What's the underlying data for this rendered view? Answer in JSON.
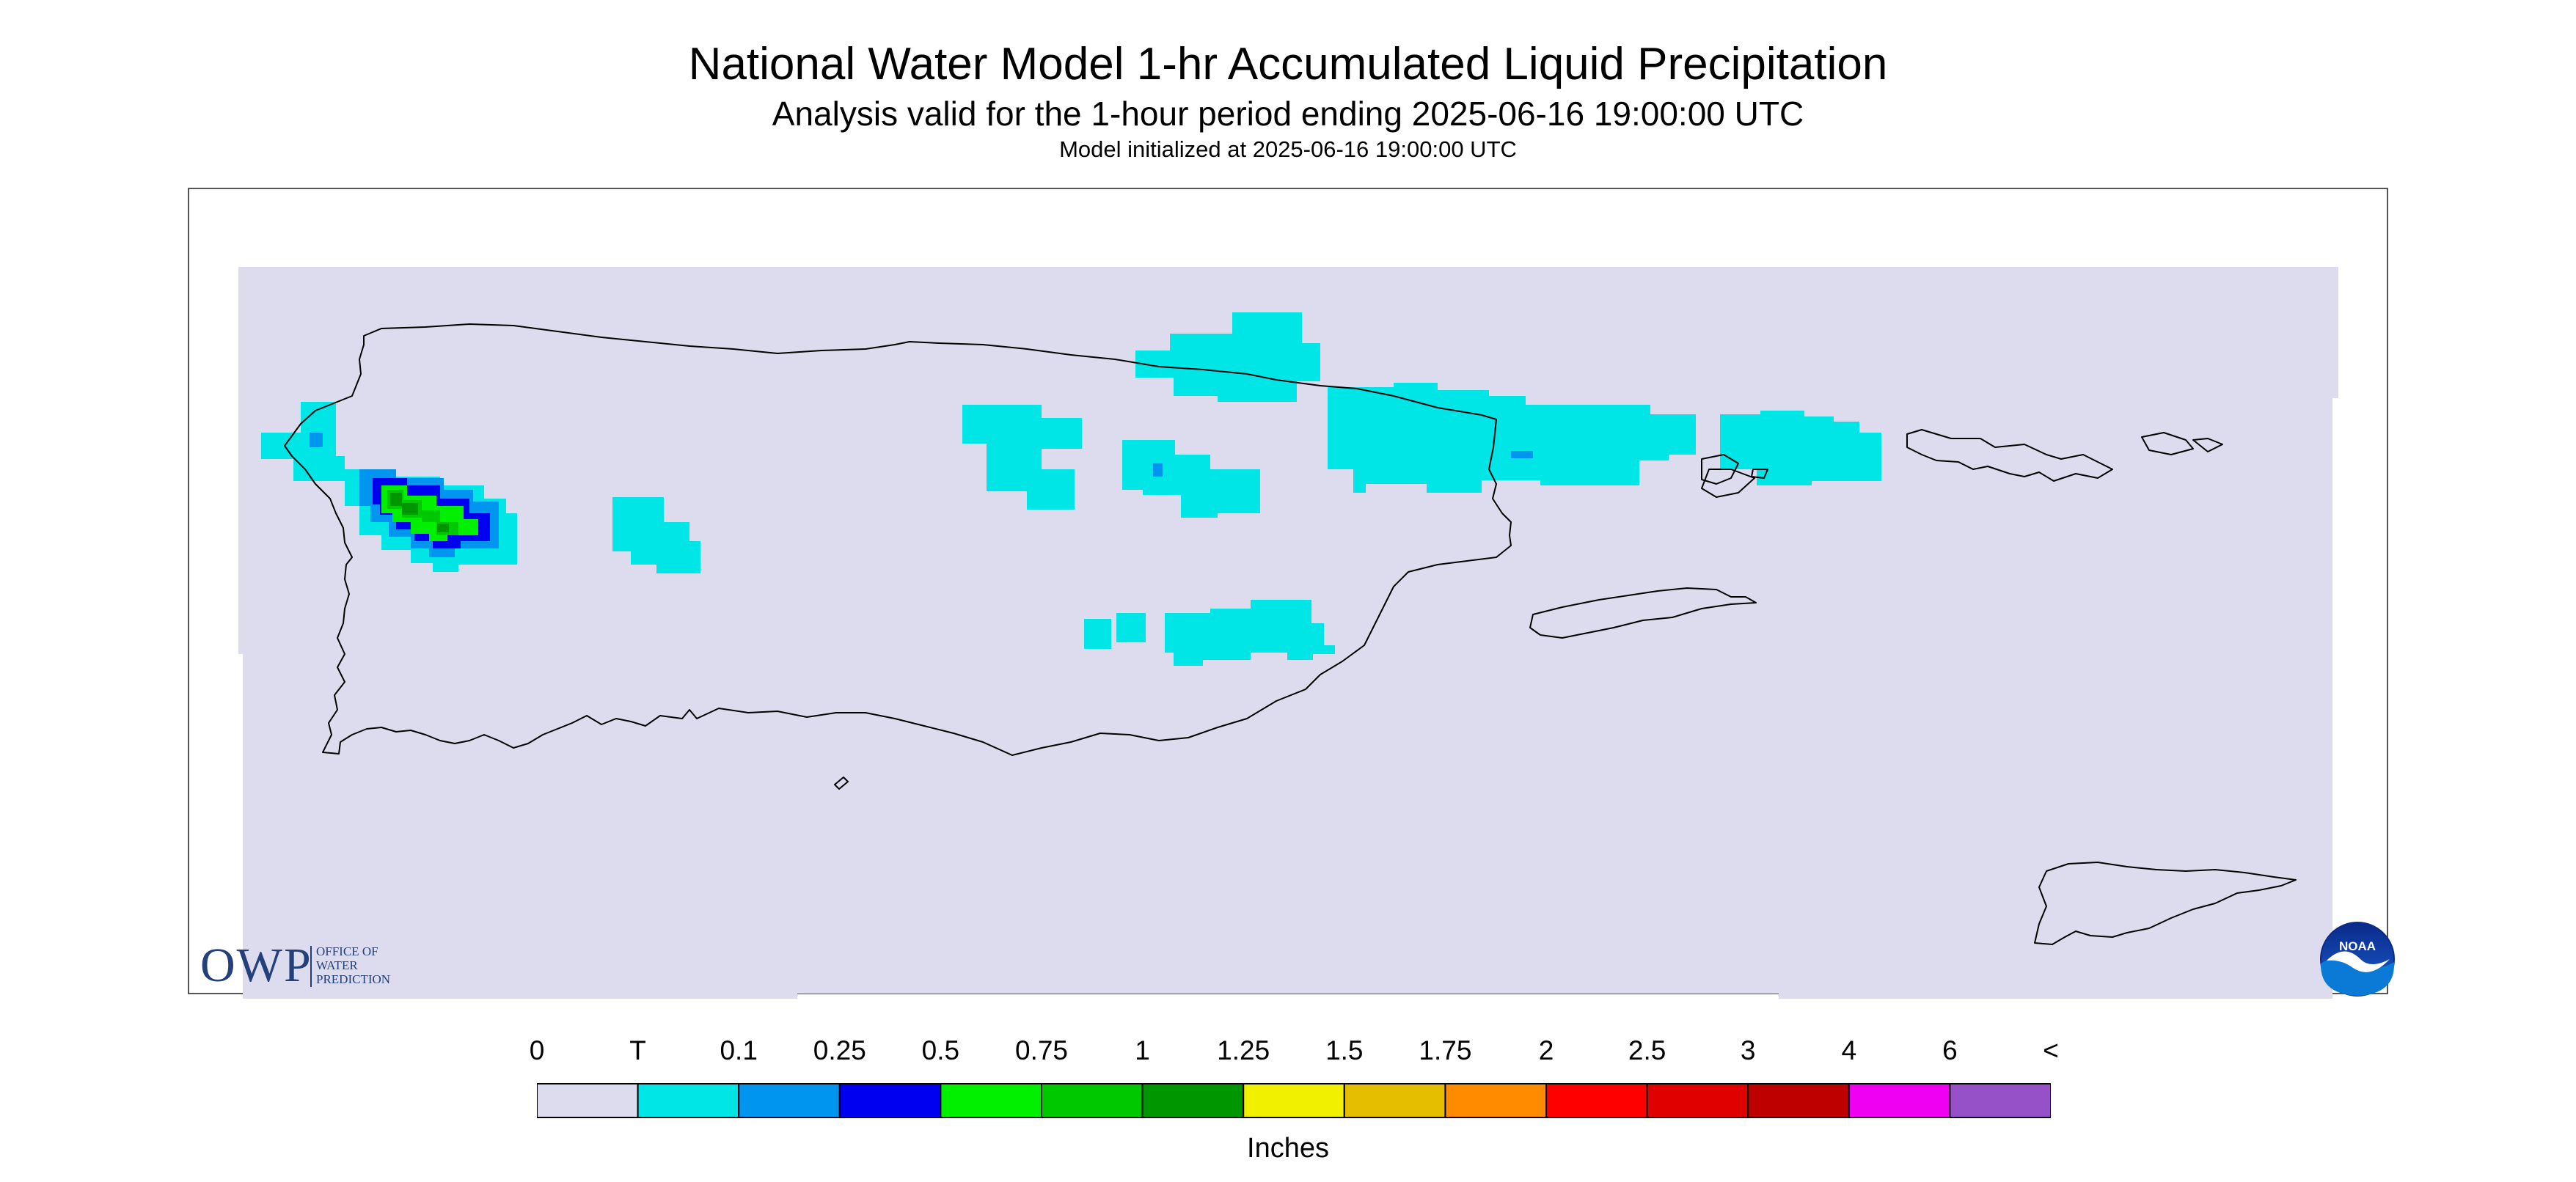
{
  "header": {
    "title": "National Water Model 1-hr Accumulated Liquid Precipitation",
    "subtitle": "Analysis valid for the 1-hour period ending 2025-06-16 19:00:00 UTC",
    "init_line": "Model initialized at 2025-06-16 19:00:00 UTC"
  },
  "map": {
    "region_names": [],
    "background_color": "#dcdcee",
    "outline_color": "#000000",
    "areas": [
      {
        "category": "T",
        "place": "northwest Puerto Rico coast"
      },
      {
        "category": "0.1",
        "place": "northwest Puerto Rico"
      },
      {
        "category": "0.25",
        "place": "northwest Puerto Rico"
      },
      {
        "category": "0.5",
        "place": "northwest Puerto Rico"
      },
      {
        "category": "0.75",
        "place": "northwest Puerto Rico"
      },
      {
        "category": "1",
        "place": "northwest Puerto Rico"
      },
      {
        "category": "T",
        "place": "west-central Puerto Rico"
      },
      {
        "category": "T",
        "place": "central Puerto Rico"
      },
      {
        "category": "T",
        "place": "north coast near San Juan"
      },
      {
        "category": "T",
        "place": "northeast Puerto Rico"
      },
      {
        "category": "T",
        "place": "east of Puerto Rico"
      },
      {
        "category": "T",
        "place": "south-central Puerto Rico"
      }
    ]
  },
  "logos": {
    "owp_abbrev": "OWP",
    "owp_lines": [
      "OFFICE OF",
      "WATER",
      "PREDICTION"
    ],
    "noaa_text": "NOAA"
  },
  "legend": {
    "title": "Inches",
    "tick_labels": [
      "0",
      "T",
      "0.1",
      "0.25",
      "0.5",
      "0.75",
      "1",
      "1.25",
      "1.5",
      "1.75",
      "2",
      "2.5",
      "3",
      "4",
      "6",
      "<"
    ],
    "categories": [
      {
        "label": "0",
        "color": "#dcdcee"
      },
      {
        "label": "T",
        "color": "#00e6e6"
      },
      {
        "label": "0.1",
        "color": "#0096f0"
      },
      {
        "label": "0.25",
        "color": "#0000f0"
      },
      {
        "label": "0.5",
        "color": "#00f000"
      },
      {
        "label": "0.75",
        "color": "#00c800"
      },
      {
        "label": "1",
        "color": "#009600"
      },
      {
        "label": "1.25",
        "color": "#f0f000"
      },
      {
        "label": "1.5",
        "color": "#e6be00"
      },
      {
        "label": "1.75",
        "color": "#ff8c00"
      },
      {
        "label": "2",
        "color": "#ff0000"
      },
      {
        "label": "2.5",
        "color": "#e00000"
      },
      {
        "label": "3",
        "color": "#be0000"
      },
      {
        "label": "4",
        "color": "#f000f0"
      },
      {
        "label": "6",
        "color": "#9650c8"
      }
    ]
  }
}
